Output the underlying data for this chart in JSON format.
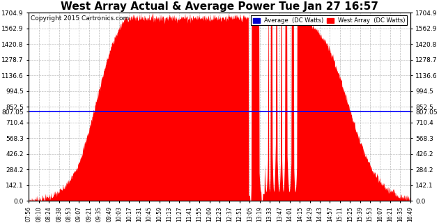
{
  "title": "West Array Actual & Average Power Tue Jan 27 16:57",
  "copyright": "Copyright 2015 Cartronics.com",
  "avg_line_value": 807.05,
  "ymax": 1704.9,
  "ymin": 0.0,
  "yticks": [
    0.0,
    142.1,
    284.2,
    426.2,
    568.3,
    710.4,
    852.5,
    994.5,
    1136.6,
    1278.7,
    1420.8,
    1562.9,
    1704.9
  ],
  "ytick_avg": 807.05,
  "background_color": "#ffffff",
  "fill_color": "#ff0000",
  "avg_line_color": "#0000ff",
  "legend_avg_color": "#0000cc",
  "legend_west_color": "#ff0000",
  "legend_avg_text": "Average  (DC Watts)",
  "legend_west_text": "West Array  (DC Watts)",
  "title_fontsize": 11,
  "copyright_fontsize": 6.5,
  "xtick_fontsize": 5.5,
  "ytick_fontsize": 6.5,
  "xtick_labels": [
    "07:56",
    "08:10",
    "08:24",
    "08:38",
    "08:53",
    "09:07",
    "09:21",
    "09:35",
    "09:49",
    "10:03",
    "10:17",
    "10:31",
    "10:45",
    "10:59",
    "11:13",
    "11:27",
    "11:41",
    "11:55",
    "12:09",
    "12:23",
    "12:37",
    "12:51",
    "13:05",
    "13:19",
    "13:33",
    "13:47",
    "14:01",
    "14:15",
    "14:29",
    "14:43",
    "14:57",
    "15:11",
    "15:25",
    "15:39",
    "15:53",
    "16:07",
    "16:21",
    "16:35",
    "16:49"
  ]
}
